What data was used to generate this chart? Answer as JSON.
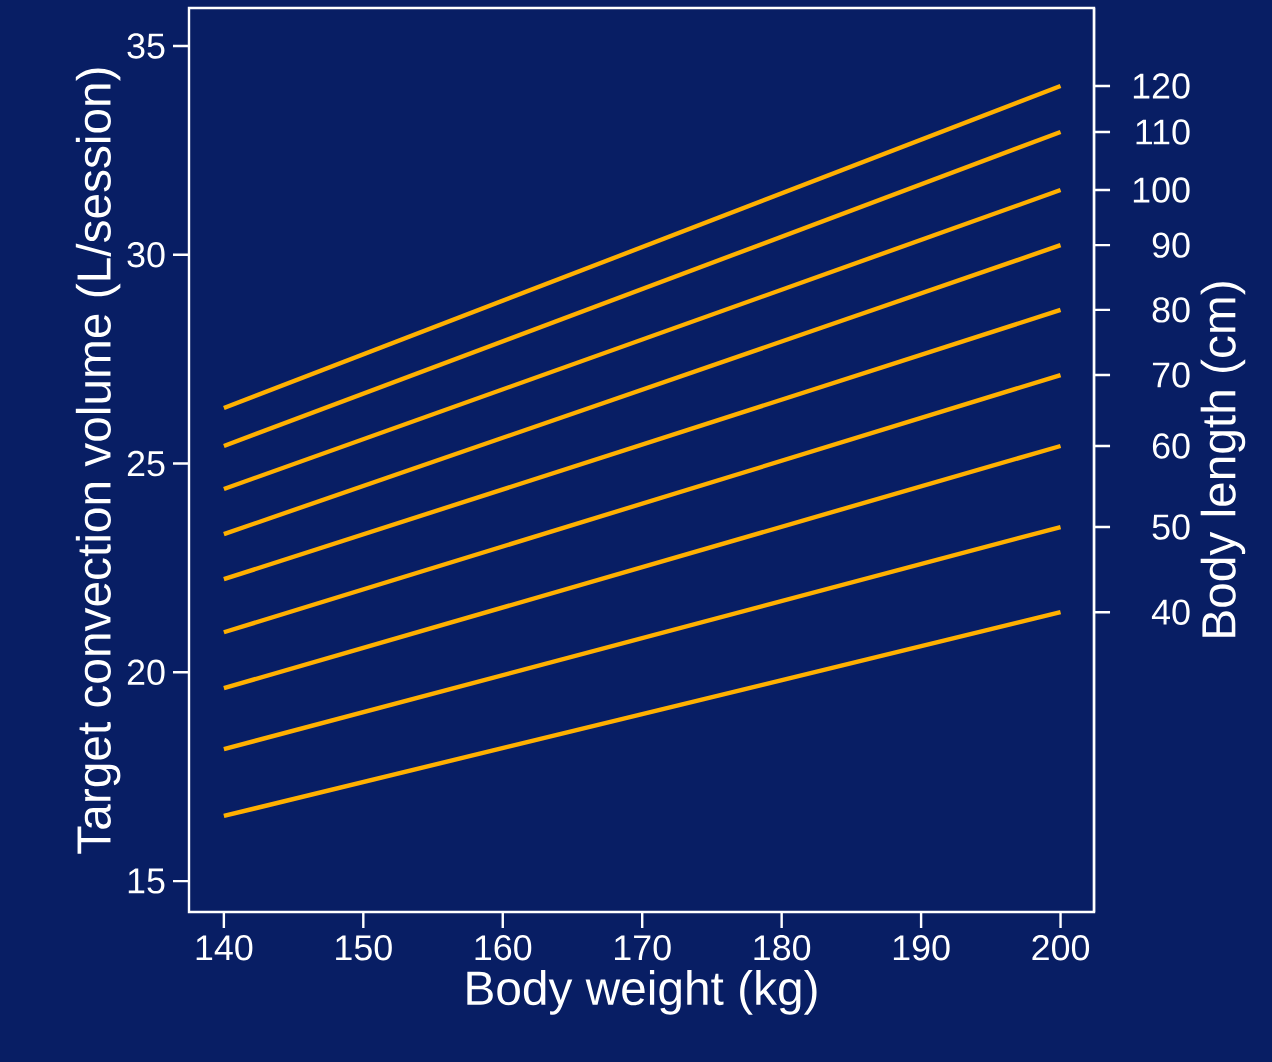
{
  "chart_data": {
    "type": "line",
    "x": [
      140,
      200
    ],
    "series": [
      {
        "name": "120",
        "color": "#ffb000",
        "values": [
          26.33,
          34.04
        ]
      },
      {
        "name": "110",
        "color": "#ffb000",
        "values": [
          25.42,
          32.94
        ]
      },
      {
        "name": "100",
        "color": "#ffb000",
        "values": [
          24.39,
          31.55
        ]
      },
      {
        "name": "90",
        "color": "#ffb000",
        "values": [
          23.31,
          30.23
        ]
      },
      {
        "name": "80",
        "color": "#ffb000",
        "values": [
          22.23,
          28.68
        ]
      },
      {
        "name": "70",
        "color": "#ffb000",
        "values": [
          20.96,
          27.12
        ]
      },
      {
        "name": "60",
        "color": "#ffb000",
        "values": [
          19.62,
          25.42
        ]
      },
      {
        "name": "50",
        "color": "#ffb000",
        "values": [
          18.16,
          23.48
        ]
      },
      {
        "name": "40",
        "color": "#ffb000",
        "values": [
          16.56,
          21.44
        ]
      }
    ],
    "xlabel": "Body weight (kg)",
    "ylabel": "Target convection volume (L/session)",
    "y2label": "Body length (cm)",
    "xlim": [
      137.5,
      202.4
    ],
    "ylim": [
      14.26,
      35.91
    ],
    "xticks": [
      140,
      150,
      160,
      170,
      180,
      190,
      200
    ],
    "yticks": [
      15,
      20,
      25,
      30,
      35
    ]
  }
}
